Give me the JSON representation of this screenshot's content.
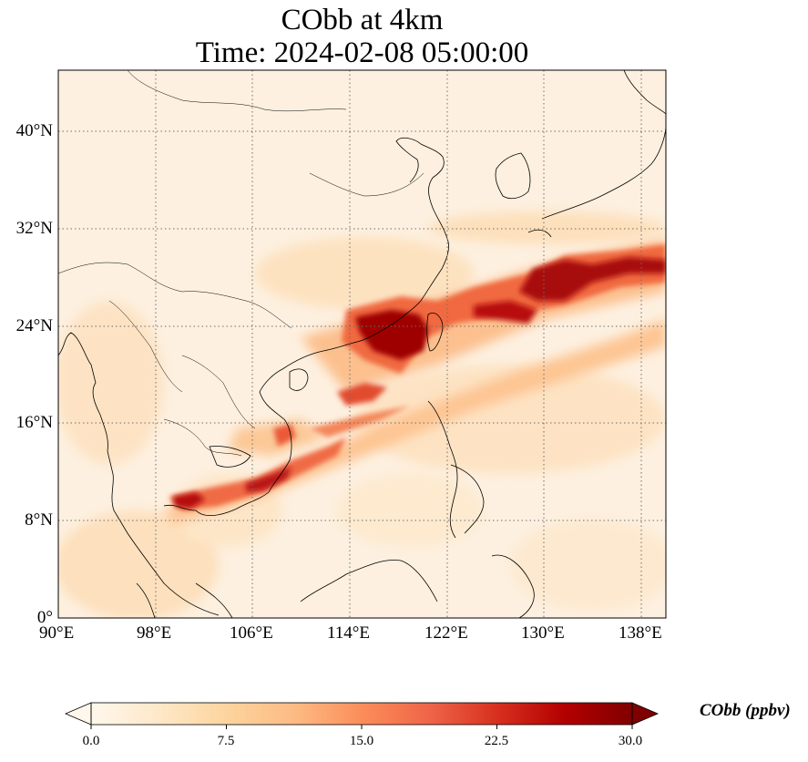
{
  "title": {
    "line1": "CObb at 4km",
    "line2": "Time: 2024-02-08 05:00:00"
  },
  "map": {
    "variable": "CObb",
    "level": "4km",
    "lon_range": [
      90,
      140
    ],
    "lat_range": [
      0,
      45
    ],
    "gridlines": "dotted",
    "x_ticks": [
      "90°E",
      "98°E",
      "106°E",
      "114°E",
      "122°E",
      "130°E",
      "138°E"
    ],
    "y_ticks": [
      "0°",
      "8°N",
      "16°N",
      "24°N",
      "32°N",
      "40°N"
    ],
    "colormap": "OrRd",
    "colors": {
      "low": "#fff7ec",
      "mid": "#fc8d59",
      "high": "#7f0000"
    }
  },
  "colorbar": {
    "label": "CObb (ppbv)",
    "ticks": [
      "0.0",
      "7.5",
      "15.0",
      "22.5",
      "30.0"
    ],
    "min": 0,
    "max": 30,
    "extend": "both"
  }
}
